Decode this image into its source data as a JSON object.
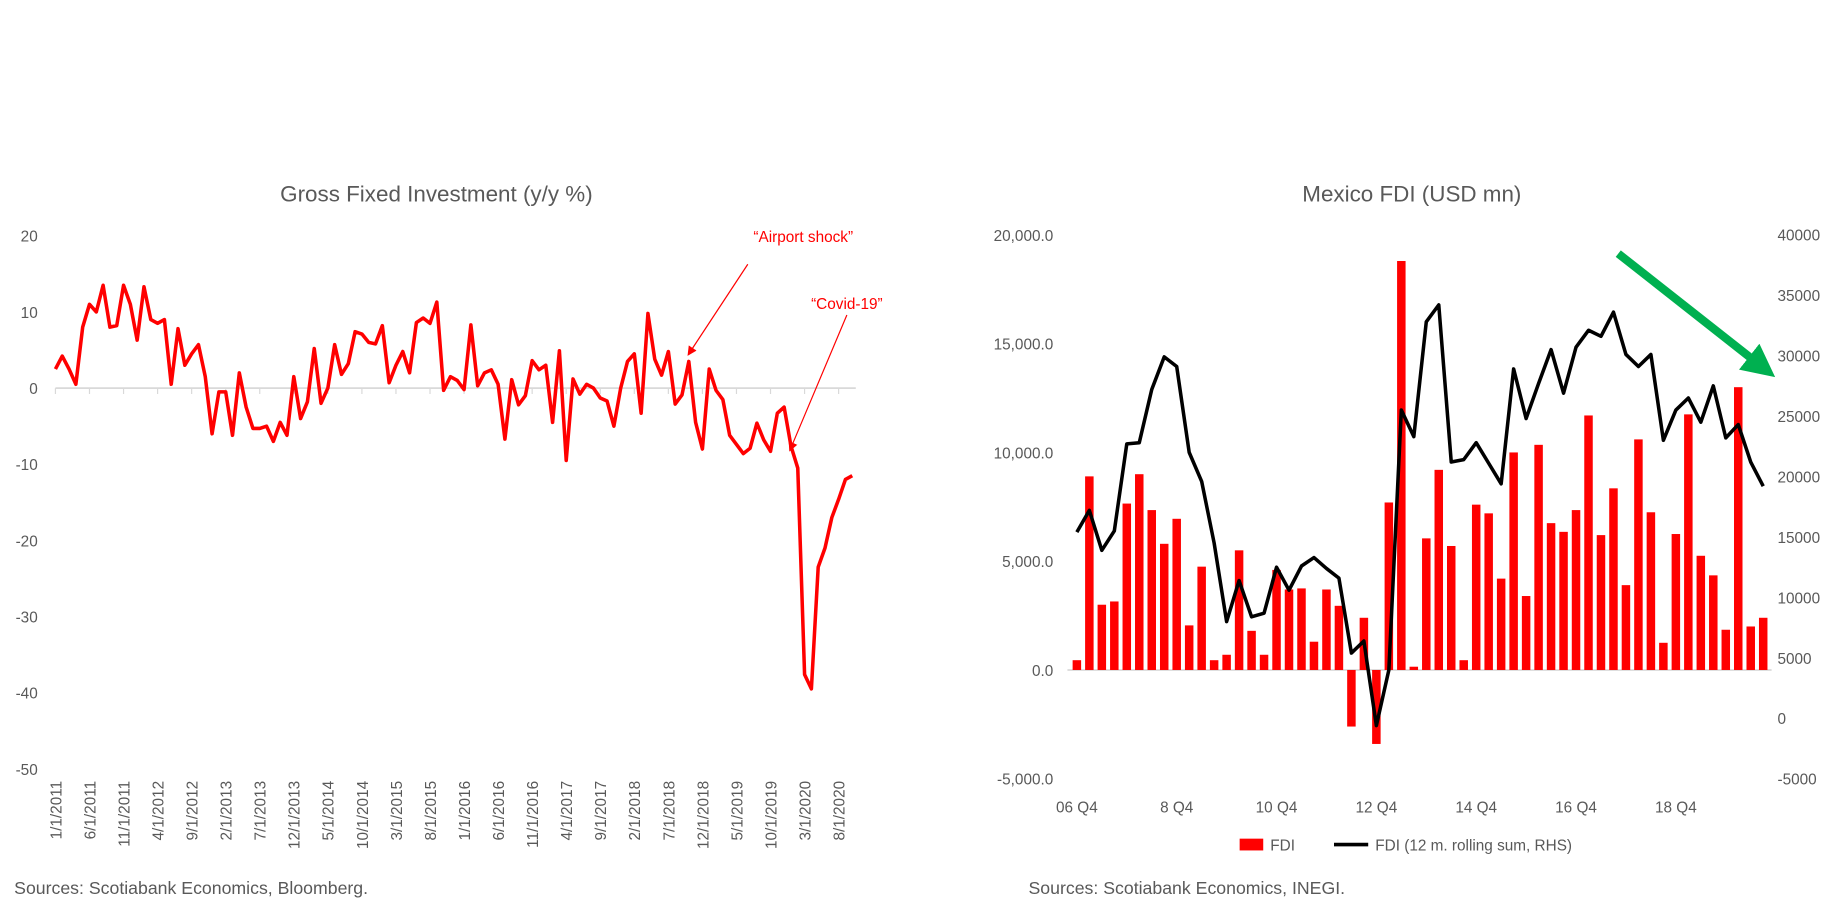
{
  "colors": {
    "series_red": "#ff0000",
    "line_black": "#000000",
    "arrow_green": "#00b050",
    "axis_gray": "#d9d9d9",
    "text_gray": "#595959"
  },
  "chart_data": [
    {
      "type": "line",
      "title": "Gross Fixed Investment (y/y %)",
      "xlabel": "",
      "ylabel": "",
      "ylim": [
        -50,
        20
      ],
      "yticks": [
        "20",
        "10",
        "0",
        "-10",
        "-20",
        "-30",
        "-40",
        "-50"
      ],
      "ytick_values": [
        20,
        10,
        0,
        -10,
        -20,
        -30,
        -40,
        -50
      ],
      "x_start": "1/1/2011",
      "x_frequency": "monthly",
      "xtick_labels": [
        "1/1/2011",
        "6/1/2011",
        "11/1/2011",
        "4/1/2012",
        "9/1/2012",
        "2/1/2013",
        "7/1/2013",
        "12/1/2013",
        "5/1/2014",
        "10/1/2014",
        "3/1/2015",
        "8/1/2015",
        "1/1/2016",
        "6/1/2016",
        "11/1/2016",
        "4/1/2017",
        "9/1/2017",
        "2/1/2018",
        "7/1/2018",
        "12/1/2018",
        "5/1/2019",
        "10/1/2019",
        "3/1/2020",
        "8/1/2020"
      ],
      "xtick_step_months": 5,
      "series": [
        {
          "name": "Gross Fixed Investment",
          "color": "#ff0000",
          "values": [
            2.5,
            4.2,
            2.5,
            0.5,
            8,
            11,
            10,
            13.5,
            8,
            8.2,
            13.5,
            11,
            6.3,
            13.3,
            9,
            8.5,
            9,
            0.5,
            7.8,
            3,
            4.5,
            5.7,
            1.5,
            -6,
            -0.5,
            -0.5,
            -6.2,
            2,
            -2.5,
            -5.3,
            -5.3,
            -5,
            -7,
            -4.5,
            -6.2,
            1.5,
            -4,
            -1.8,
            5.2,
            -2,
            0,
            5.7,
            1.8,
            3.2,
            7.4,
            7.1,
            6,
            5.8,
            8.2,
            0.7,
            3,
            4.8,
            2,
            8.6,
            9.2,
            8.5,
            11.3,
            -0.3,
            1.5,
            1,
            -0.2,
            8.3,
            0.3,
            2,
            2.4,
            0.5,
            -6.7,
            1.1,
            -2.2,
            -1,
            3.6,
            2.4,
            3,
            -4.5,
            4.9,
            -9.5,
            1.2,
            -0.8,
            0.5,
            0,
            -1.3,
            -1.7,
            -5,
            0,
            3.5,
            4.5,
            -3.3,
            9.8,
            3.8,
            1.7,
            4.8,
            -2.1,
            -0.9,
            3.5,
            -4.5,
            -8,
            2.5,
            -0.3,
            -1.5,
            -6.2,
            -7.4,
            -8.6,
            -7.9,
            -4.6,
            -6.8,
            -8.3,
            -3.3,
            -2.5,
            -7.6,
            -10.5,
            -37.6,
            -39.5,
            -23.5,
            -21,
            -17,
            -14.6,
            -12,
            -11.5
          ]
        }
      ],
      "annotations": [
        {
          "text": "“Airport shock”",
          "target_index": 95
        },
        {
          "text": "“Covid-19”",
          "target_index": 109
        }
      ],
      "grid": false,
      "source": "Sources: Scotiabank Economics, Bloomberg."
    },
    {
      "type": "bar+line",
      "title": "Mexico FDI (USD mn)",
      "ylim_left": [
        -5000,
        20000
      ],
      "ylim_right": [
        -5000,
        40000
      ],
      "yticks_left": [
        "20,000.0",
        "15,000.0",
        "10,000.0",
        "5,000.0",
        "0.0",
        "-5,000.0"
      ],
      "ytick_values_left": [
        20000,
        15000,
        10000,
        5000,
        0,
        -5000
      ],
      "yticks_right": [
        "40000",
        "35000",
        "30000",
        "25000",
        "20000",
        "15000",
        "10000",
        "5000",
        "0",
        "-5000"
      ],
      "ytick_values_right": [
        40000,
        35000,
        30000,
        25000,
        20000,
        15000,
        10000,
        5000,
        0,
        -5000
      ],
      "xtick_labels": [
        "06 Q4",
        "8 Q4",
        "10 Q4",
        "12 Q4",
        "14 Q4",
        "16 Q4",
        "18 Q4"
      ],
      "xtick_step_quarters": 8,
      "legend": {
        "position": "bottom",
        "entries": [
          "FDI",
          "FDI (12 m. rolling sum, RHS)"
        ]
      },
      "series": [
        {
          "name": "FDI",
          "type": "bar",
          "axis": "left",
          "color": "#ff0000",
          "values": [
            450,
            8900,
            3000,
            3150,
            7650,
            9000,
            7350,
            5800,
            6950,
            2050,
            4750,
            450,
            700,
            5500,
            1800,
            700,
            4600,
            3700,
            3750,
            1300,
            3700,
            2950,
            -2600,
            2400,
            -3400,
            7700,
            18800,
            150,
            6050,
            9200,
            5700,
            450,
            7600,
            7200,
            4200,
            10000,
            3400,
            10350,
            6750,
            6350,
            7350,
            11700,
            6200,
            8350,
            3900,
            10600,
            7250,
            1250,
            6250,
            11750,
            5250,
            4350,
            1850,
            13000,
            2000,
            2400
          ]
        },
        {
          "name": "FDI (12 m. rolling sum, RHS)",
          "type": "line",
          "axis": "right",
          "color": "#000000",
          "values": [
            15400,
            17200,
            13900,
            15500,
            22700,
            22800,
            27200,
            29900,
            29100,
            22000,
            19600,
            14500,
            8000,
            11400,
            8400,
            8700,
            12500,
            10600,
            12600,
            13300,
            12400,
            11600,
            5400,
            6400,
            -600,
            4000,
            25500,
            23300,
            32800,
            34200,
            21200,
            21400,
            22800,
            21100,
            19400,
            28900,
            24800,
            27700,
            30500,
            26900,
            30700,
            32100,
            31600,
            33600,
            30100,
            29100,
            30100,
            23000,
            25500,
            26500,
            24500,
            27500,
            23200,
            24300,
            21200,
            19200
          ]
        }
      ],
      "annotations": [
        {
          "type": "arrow",
          "color": "#00b050",
          "direction": "down-right"
        }
      ],
      "grid": false,
      "source": "Sources: Scotiabank Economics, INEGI."
    }
  ]
}
